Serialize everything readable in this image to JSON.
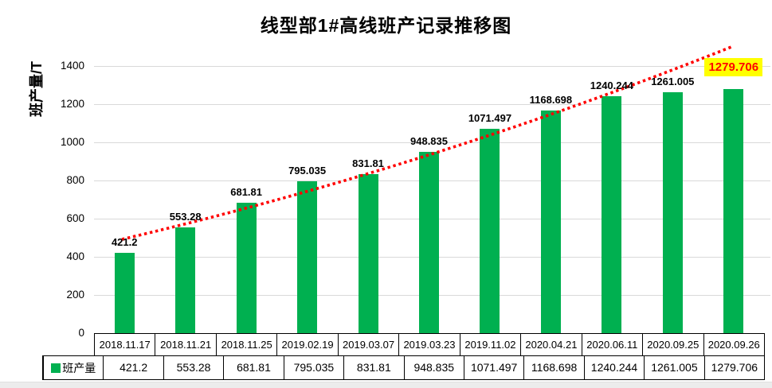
{
  "window": {
    "background": "#FFFFFF",
    "footer_strip_color": "#ECECEC"
  },
  "chart_data": {
    "type": "bar",
    "title": "线型部1#高线班产记录推移图",
    "ylabel": "班产量/T",
    "xlabel": "",
    "ylim": [
      0,
      1400
    ],
    "ytick_step": 200,
    "grid": true,
    "grid_color": "#D9D9D9",
    "legend_position": "data-table-left",
    "categories": [
      "2018.11.17",
      "2018.11.21",
      "2018.11.25",
      "2019.02.19",
      "2019.03.07",
      "2019.03.23",
      "2019.11.02",
      "2020.04.21",
      "2020.06.11",
      "2020.09.25",
      "2020.09.26"
    ],
    "series": [
      {
        "name": "班产量",
        "values": [
          421.2,
          553.28,
          681.81,
          795.035,
          831.81,
          948.835,
          1071.497,
          1168.698,
          1240.244,
          1261.005,
          1279.706
        ]
      }
    ],
    "bar_color": "#00B050",
    "data_labels": [
      "421.2",
      "553.28",
      "681.81",
      "795.035",
      "831.81",
      "948.835",
      "1071.497",
      "1168.698",
      "1240.244",
      "1261.005",
      "1279.706"
    ],
    "highlighted_label": {
      "index": 10,
      "text": "1279.706",
      "text_color": "#FF0000",
      "bg_color": "#FFFF00"
    },
    "trendline": {
      "style": "round-dot",
      "color": "#FF0000"
    },
    "data_table_shown": true
  }
}
